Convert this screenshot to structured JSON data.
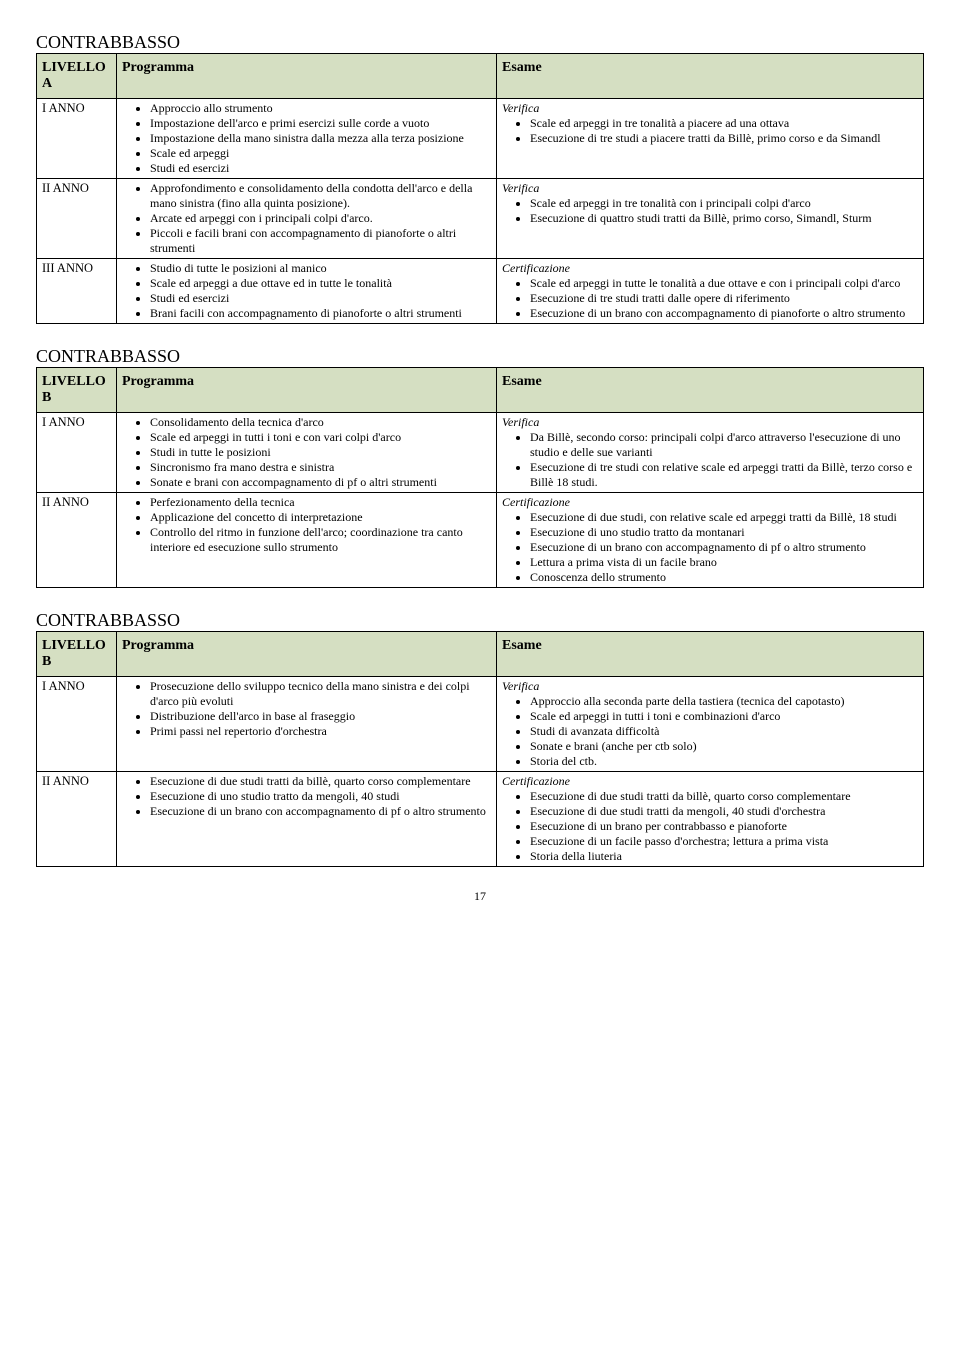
{
  "page_number": "17",
  "tables": [
    {
      "title": "CONTRABBASSO",
      "col_headers": {
        "level": "LIVELLO\nA",
        "programma": "Programma",
        "esame": "Esame"
      },
      "rows": [
        {
          "label": "I ANNO",
          "programma": [
            "Approccio allo strumento",
            "Impostazione dell'arco e primi esercizi sulle corde a vuoto",
            "Impostazione della mano sinistra dalla mezza alla terza posizione",
            "Scale ed arpeggi",
            "Studi ed esercizi"
          ],
          "esame_sub": "Verifica",
          "esame": [
            "Scale ed arpeggi in tre tonalità a piacere ad una ottava",
            "Esecuzione di tre studi a piacere tratti da Billè, primo corso e da Simandl"
          ]
        },
        {
          "label": "II ANNO",
          "programma": [
            "Approfondimento e consolidamento della condotta dell'arco e della mano sinistra (fino alla quinta posizione).",
            "Arcate ed arpeggi con i principali colpi d'arco.",
            "Piccoli e facili brani con accompagnamento di pianoforte o altri strumenti"
          ],
          "esame_sub": "Verifica",
          "esame": [
            "Scale ed arpeggi in tre tonalità con i principali colpi d'arco",
            "Esecuzione di quattro studi tratti da Billè, primo corso, Simandl, Sturm"
          ]
        },
        {
          "label": "III ANNO",
          "programma": [
            "Studio di tutte le posizioni al manico",
            "Scale ed arpeggi a due ottave ed in tutte le tonalità",
            "Studi ed esercizi",
            "Brani facili con accompagnamento di pianoforte o altri strumenti"
          ],
          "esame_sub": "Certificazione",
          "esame": [
            "Scale ed arpeggi in tutte le tonalità a due ottave e con i principali colpi d'arco",
            "Esecuzione di tre studi tratti dalle opere di riferimento",
            "Esecuzione di un brano con accompagnamento di pianoforte o altro strumento"
          ]
        }
      ]
    },
    {
      "title": "CONTRABBASSO",
      "col_headers": {
        "level": "LIVELLO\nB",
        "programma": "Programma",
        "esame": "Esame"
      },
      "rows": [
        {
          "label": "I ANNO",
          "programma": [
            "Consolidamento della tecnica d'arco",
            "Scale ed arpeggi in tutti i toni e con vari colpi d'arco",
            "Studi in tutte le posizioni",
            "Sincronismo fra mano destra e sinistra",
            "Sonate e brani con accompagnamento di pf o altri strumenti"
          ],
          "esame_sub": "Verifica",
          "esame": [
            "Da Billè, secondo corso: principali colpi d'arco attraverso l'esecuzione di uno studio e delle sue varianti",
            "Esecuzione di tre studi con relative scale ed arpeggi tratti da Billè, terzo corso e Billè 18 studi."
          ]
        },
        {
          "label": "II ANNO",
          "programma": [
            "Perfezionamento della tecnica",
            "Applicazione del concetto di interpretazione",
            "Controllo del ritmo in funzione dell'arco; coordinazione tra canto interiore ed esecuzione sullo strumento"
          ],
          "esame_sub": "Certificazione",
          "esame": [
            "Esecuzione di due studi, con relative scale ed arpeggi tratti da Billè, 18 studi",
            "Esecuzione di uno studio tratto da montanari",
            "Esecuzione di un brano con accompagnamento di pf o altro strumento",
            "Lettura a prima vista di un facile brano",
            "Conoscenza dello strumento"
          ]
        }
      ]
    },
    {
      "title": "CONTRABBASSO",
      "col_headers": {
        "level": "LIVELLO\nB",
        "programma": "Programma",
        "esame": "Esame"
      },
      "rows": [
        {
          "label": "I ANNO",
          "programma": [
            "Prosecuzione dello sviluppo tecnico della mano sinistra e dei colpi d'arco più evoluti",
            "Distribuzione dell'arco in base al fraseggio",
            "Primi passi nel repertorio d'orchestra"
          ],
          "esame_sub": "Verifica",
          "esame": [
            "Approccio alla seconda parte della tastiera (tecnica del capotasto)",
            "Scale ed arpeggi in tutti i toni e combinazioni d'arco",
            "Studi di avanzata difficoltà",
            "Sonate e brani (anche per ctb solo)",
            "Storia del ctb."
          ]
        },
        {
          "label": "II ANNO",
          "programma": [
            "Esecuzione di due studi tratti da billè, quarto corso complementare",
            "Esecuzione di uno studio tratto da mengoli, 40 studi",
            "Esecuzione di un brano con accompagnamento di pf o altro strumento"
          ],
          "esame_sub": "Certificazione",
          "esame": [
            "Esecuzione di due studi tratti da billè, quarto corso complementare",
            "Esecuzione di due studi tratti da mengoli, 40 studi d'orchestra",
            "Esecuzione di un brano per contrabbasso e pianoforte",
            "Esecuzione di un facile passo d'orchestra; lettura a prima vista",
            "Storia della liuteria"
          ]
        }
      ]
    }
  ]
}
